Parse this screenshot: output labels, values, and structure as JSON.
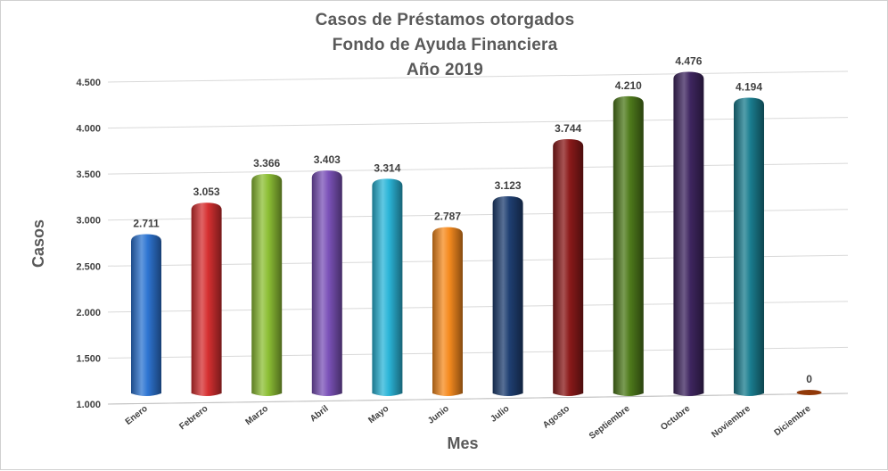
{
  "chart_data": {
    "type": "bar",
    "title": [
      "Casos de Préstamos otorgados",
      "Fondo de Ayuda Financiera",
      "Año 2019"
    ],
    "xlabel": "Mes",
    "ylabel": "Casos",
    "ylim": [
      1000,
      4500
    ],
    "yticks": [
      1000,
      1500,
      2000,
      2500,
      3000,
      3500,
      4000,
      4500
    ],
    "ytick_labels": [
      "1.000",
      "1.500",
      "2.000",
      "2.500",
      "3.000",
      "3.500",
      "4.000",
      "4.500"
    ],
    "grid": true,
    "legend": "none",
    "categories": [
      "Enero",
      "Febrero",
      "Marzo",
      "Abril",
      "Mayo",
      "Junio",
      "Julio",
      "Agosto",
      "Septiembre",
      "Octubre",
      "Noviembre",
      "Diciembre"
    ],
    "values": [
      2711,
      3053,
      3366,
      3403,
      3314,
      2787,
      3123,
      3744,
      4210,
      4476,
      4194,
      0
    ],
    "value_labels": [
      "2.711",
      "3.053",
      "3.366",
      "3.403",
      "3.314",
      "2.787",
      "3.123",
      "3.744",
      "4.210",
      "4.476",
      "4.194",
      "0"
    ],
    "colors": [
      "#2E75D2",
      "#D63031",
      "#8DBF35",
      "#7B52B8",
      "#2BB5D8",
      "#F68B1F",
      "#1F3F72",
      "#8B1A1A",
      "#4E7A1B",
      "#3F2660",
      "#1A7D8F",
      "#B5470B"
    ]
  }
}
